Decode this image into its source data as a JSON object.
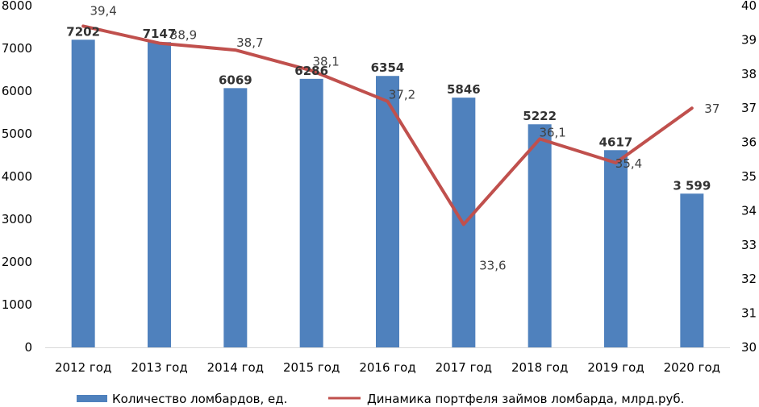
{
  "chart_data": {
    "type": "bar",
    "categories": [
      "2012 год",
      "2013 год",
      "2014 год",
      "2015 год",
      "2016 год",
      "2017 год",
      "2018 год",
      "2019 год",
      "2020 год"
    ],
    "series": [
      {
        "name": "Количество ломбардов, ед.",
        "type": "bar",
        "axis": "left",
        "color": "#4F81BD",
        "values": [
          7202,
          7147,
          6069,
          6286,
          6354,
          5846,
          5222,
          4617,
          3599
        ],
        "labels": [
          "7202",
          "7147",
          "6069",
          "6286",
          "6354",
          "5846",
          "5222",
          "4617",
          "3 599"
        ]
      },
      {
        "name": "Динамика портфеля займов ломбарда, млрд.руб.",
        "type": "line",
        "axis": "right",
        "color": "#C0504D",
        "values": [
          39.4,
          38.9,
          38.7,
          38.1,
          37.2,
          33.6,
          36.1,
          35.4,
          37
        ],
        "labels": [
          "39,4",
          "38,9",
          "38,7",
          "38,1",
          "37,2",
          "33,6",
          "36,1",
          "35,4",
          "37"
        ]
      }
    ],
    "y_left": {
      "min": 0,
      "max": 8000,
      "ticks": [
        "0",
        "1000",
        "2000",
        "3000",
        "4000",
        "5000",
        "6000",
        "7000",
        "8000"
      ]
    },
    "y_right": {
      "min": 30,
      "max": 40,
      "ticks": [
        "30",
        "31",
        "32",
        "33",
        "34",
        "35",
        "36",
        "37",
        "38",
        "39",
        "40"
      ]
    },
    "legend_position": "bottom",
    "grid": false
  }
}
